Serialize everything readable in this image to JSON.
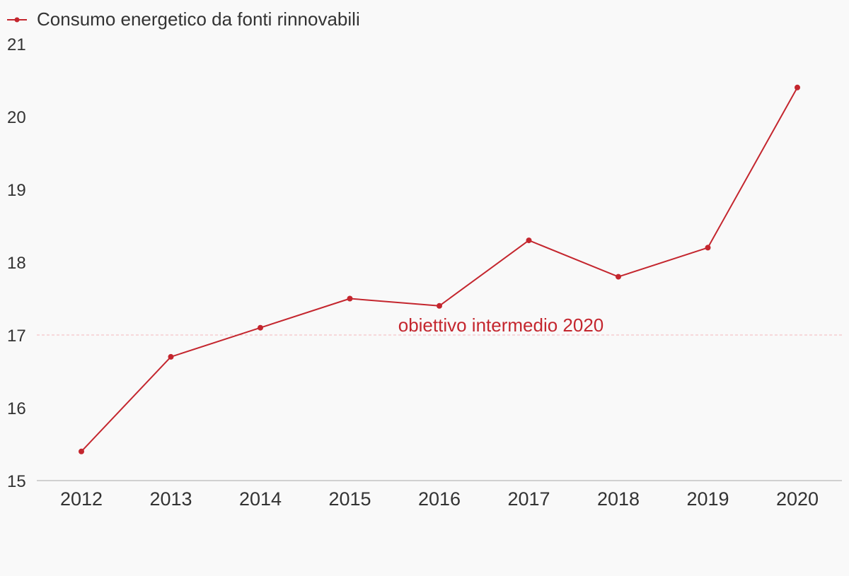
{
  "colors": {
    "background": "#f9f9f9",
    "series": "#c4262e",
    "reference_line": "#f2b8bb",
    "axis_line": "#d0d0d0",
    "text": "#333333"
  },
  "chart_data": {
    "type": "line",
    "title": "",
    "xlabel": "",
    "ylabel": "",
    "categories": [
      "2012",
      "2013",
      "2014",
      "2015",
      "2016",
      "2017",
      "2018",
      "2019",
      "2020"
    ],
    "series": [
      {
        "name": "Consumo energetico da fonti rinnovabili",
        "values": [
          15.4,
          16.7,
          17.1,
          17.5,
          17.4,
          18.3,
          17.8,
          18.2,
          20.4
        ]
      }
    ],
    "ylim": [
      15,
      21
    ],
    "yticks": [
      "15",
      "16",
      "17",
      "18",
      "19",
      "20",
      "21"
    ],
    "legend": {
      "position": "top-left",
      "marker": "line-with-dot"
    },
    "grid": false,
    "reference_line": {
      "value": 17,
      "label": "obiettivo intermedio 2020",
      "style": "dashed"
    }
  }
}
